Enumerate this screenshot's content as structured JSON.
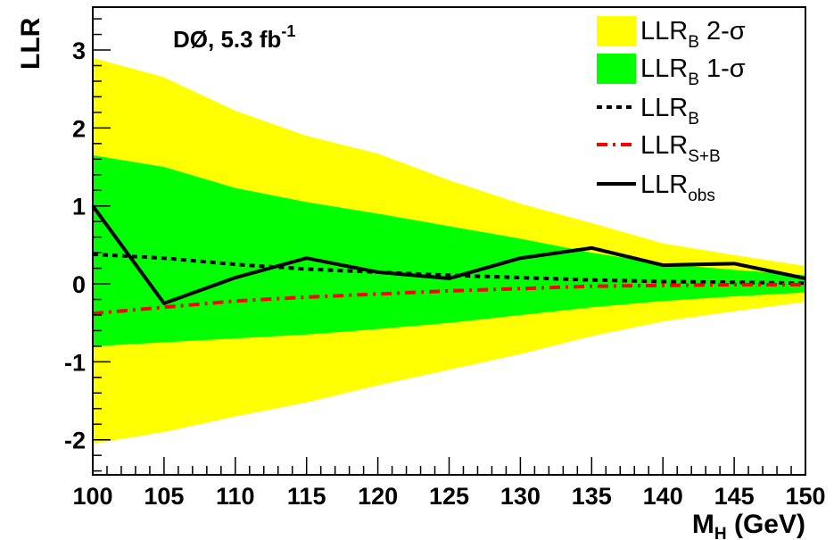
{
  "chart_data": {
    "type": "area",
    "experiment_label": {
      "main": "DØ, 5.3 fb",
      "superscript": "-1"
    },
    "xlabel": {
      "main": "M",
      "sub": "H",
      "unit": " (GeV)"
    },
    "ylabel": "LLR",
    "xlim": [
      100,
      150
    ],
    "ylim": [
      -2.45,
      3.55
    ],
    "x_ticks": [
      100,
      105,
      110,
      115,
      120,
      125,
      130,
      135,
      140,
      145,
      150
    ],
    "y_ticks": [
      -2,
      -1,
      0,
      1,
      2,
      3
    ],
    "x": [
      100,
      105,
      110,
      115,
      120,
      125,
      130,
      135,
      140,
      145,
      150
    ],
    "series": [
      {
        "name": "LLR_B 2-σ",
        "kind": "band",
        "color": "#ffff00",
        "low": [
          -2.05,
          -1.9,
          -1.7,
          -1.52,
          -1.3,
          -1.1,
          -0.9,
          -0.67,
          -0.48,
          -0.35,
          -0.23
        ],
        "high": [
          2.9,
          2.65,
          2.22,
          1.9,
          1.67,
          1.33,
          1.03,
          0.78,
          0.52,
          0.37,
          0.23
        ]
      },
      {
        "name": "LLR_B 1-σ",
        "kind": "band",
        "color": "#00ff00",
        "low": [
          -0.8,
          -0.75,
          -0.7,
          -0.65,
          -0.58,
          -0.5,
          -0.4,
          -0.3,
          -0.22,
          -0.16,
          -0.11
        ],
        "high": [
          1.65,
          1.5,
          1.23,
          1.05,
          0.9,
          0.74,
          0.58,
          0.4,
          0.26,
          0.18,
          0.11
        ]
      },
      {
        "name": "LLR_B",
        "kind": "line",
        "style": "dotted",
        "color": "#000000",
        "values": [
          0.38,
          0.33,
          0.25,
          0.19,
          0.15,
          0.11,
          0.08,
          0.05,
          0.03,
          0.02,
          0.01
        ]
      },
      {
        "name": "LLR_S+B",
        "kind": "line",
        "style": "dashdot",
        "color": "#ff0000",
        "values": [
          -0.38,
          -0.3,
          -0.22,
          -0.17,
          -0.13,
          -0.09,
          -0.06,
          -0.03,
          -0.02,
          -0.01,
          -0.01
        ]
      },
      {
        "name": "LLR_obs",
        "kind": "line",
        "style": "solid",
        "color": "#000000",
        "values": [
          1.0,
          -0.25,
          0.08,
          0.33,
          0.15,
          0.07,
          0.33,
          0.46,
          0.24,
          0.26,
          0.07
        ]
      }
    ],
    "legend": {
      "placement": "top-right",
      "entries": [
        {
          "symbol": "box",
          "color": "#ffff00",
          "main": "LLR",
          "sub": "B",
          "suffix": " 2-σ"
        },
        {
          "symbol": "box",
          "color": "#00ff00",
          "main": "LLR",
          "sub": "B",
          "suffix": " 1-σ"
        },
        {
          "symbol": "line",
          "style": "dotted",
          "color": "#000000",
          "main": "LLR",
          "sub": "B",
          "suffix": ""
        },
        {
          "symbol": "line",
          "style": "dashdot",
          "color": "#ff0000",
          "main": "LLR",
          "sub": "S+B",
          "suffix": ""
        },
        {
          "symbol": "line",
          "style": "solid",
          "color": "#000000",
          "main": "LLR",
          "sub": "obs",
          "suffix": ""
        }
      ]
    },
    "grid": false
  }
}
